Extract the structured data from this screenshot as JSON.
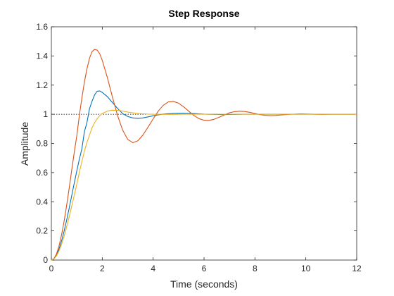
{
  "chart_data": {
    "type": "line",
    "title": "Step Response",
    "xlabel": "Time (seconds)",
    "ylabel": "Amplitude",
    "xlim": [
      0,
      12
    ],
    "ylim": [
      0,
      1.6
    ],
    "xticks": [
      0,
      2,
      4,
      6,
      8,
      10,
      12
    ],
    "yticks": [
      0,
      0.2,
      0.4,
      0.6,
      0.8,
      1,
      1.2,
      1.4,
      1.6
    ],
    "xtick_labels": [
      "0",
      "2",
      "4",
      "6",
      "8",
      "10",
      "12"
    ],
    "ytick_labels": [
      "0",
      "0.2",
      "0.4",
      "0.6",
      "0.8",
      "1",
      "1.2",
      "1.4",
      "1.6"
    ],
    "grid": false,
    "legend": "none",
    "reference_line": {
      "y": 1,
      "style": "dotted",
      "color": "#000000"
    },
    "series": [
      {
        "color": "#0072BD",
        "x": [
          0,
          0.1,
          0.2,
          0.3,
          0.4,
          0.5,
          0.6,
          0.7,
          0.8,
          0.9,
          1.0,
          1.1,
          1.2,
          1.3,
          1.4,
          1.5,
          1.6,
          1.7,
          1.8,
          1.9,
          2.0,
          2.2,
          2.4,
          2.6,
          2.8,
          3.0,
          3.2,
          3.4,
          3.6,
          3.8,
          4.0,
          4.2,
          4.4,
          4.6,
          4.8,
          5.0,
          5.2,
          5.4,
          5.6,
          5.8,
          6.0,
          6.4,
          6.8,
          7.2,
          7.6,
          8.0,
          8.5,
          9.0,
          9.5,
          10.0,
          10.5,
          11.0,
          11.5,
          12.0
        ],
        "y": [
          0,
          0.008,
          0.034,
          0.075,
          0.13,
          0.197,
          0.273,
          0.356,
          0.442,
          0.528,
          0.612,
          0.692,
          0.764,
          0.881,
          0.945,
          1.038,
          1.09,
          1.133,
          1.158,
          1.16,
          1.15,
          1.121,
          1.081,
          1.04,
          1.005,
          0.985,
          0.975,
          0.972,
          0.975,
          0.982,
          0.99,
          0.996,
          1.001,
          1.004,
          1.006,
          1.007,
          1.007,
          1.006,
          1.005,
          1.003,
          1.001,
          0.999,
          0.998,
          0.999,
          1.0,
          1.0,
          1.0,
          1.0,
          1.0,
          1.0,
          1.0,
          1.0,
          1.0,
          1.0
        ]
      },
      {
        "color": "#D95319",
        "x": [
          0,
          0.1,
          0.2,
          0.3,
          0.4,
          0.5,
          0.6,
          0.7,
          0.8,
          0.9,
          1.0,
          1.1,
          1.2,
          1.3,
          1.4,
          1.5,
          1.6,
          1.7,
          1.8,
          1.9,
          2.0,
          2.2,
          2.4,
          2.6,
          2.8,
          3.0,
          3.2,
          3.4,
          3.6,
          3.8,
          4.0,
          4.2,
          4.4,
          4.6,
          4.8,
          5.0,
          5.2,
          5.4,
          5.6,
          5.8,
          6.0,
          6.2,
          6.4,
          6.6,
          6.8,
          7.0,
          7.2,
          7.4,
          7.6,
          7.8,
          8.0,
          8.2,
          8.4,
          8.6,
          8.8,
          9.0,
          9.4,
          9.8,
          10.2,
          10.6,
          11.0,
          11.5,
          12.0
        ],
        "y": [
          0,
          0.009,
          0.041,
          0.096,
          0.172,
          0.265,
          0.374,
          0.493,
          0.617,
          0.739,
          0.853,
          0.992,
          1.112,
          1.223,
          1.313,
          1.385,
          1.43,
          1.445,
          1.44,
          1.415,
          1.37,
          1.252,
          1.118,
          0.992,
          0.892,
          0.828,
          0.805,
          0.818,
          0.858,
          0.912,
          0.968,
          1.022,
          1.062,
          1.085,
          1.088,
          1.076,
          1.051,
          1.021,
          0.992,
          0.97,
          0.959,
          0.958,
          0.966,
          0.98,
          0.996,
          1.01,
          1.018,
          1.021,
          1.019,
          1.013,
          1.005,
          0.998,
          0.993,
          0.991,
          0.992,
          0.995,
          1.0,
          1.003,
          1.001,
          0.999,
          1.0,
          1.0,
          1.0
        ]
      },
      {
        "color": "#EDB120",
        "x": [
          0,
          0.1,
          0.2,
          0.3,
          0.4,
          0.5,
          0.6,
          0.7,
          0.8,
          0.9,
          1.0,
          1.1,
          1.2,
          1.3,
          1.4,
          1.5,
          1.6,
          1.7,
          1.8,
          1.9,
          2.0,
          2.2,
          2.4,
          2.6,
          2.8,
          3.0,
          3.2,
          3.4,
          3.6,
          3.8,
          4.0,
          4.4,
          4.8,
          5.2,
          5.6,
          6.0,
          7.0,
          8.0,
          9.0,
          10.0,
          11.0,
          12.0
        ],
        "y": [
          0,
          0.007,
          0.028,
          0.062,
          0.108,
          0.163,
          0.227,
          0.297,
          0.37,
          0.443,
          0.52,
          0.602,
          0.677,
          0.747,
          0.808,
          0.858,
          0.908,
          0.942,
          0.97,
          0.99,
          1.005,
          1.022,
          1.028,
          1.027,
          1.022,
          1.015,
          1.01,
          1.006,
          1.003,
          1.001,
          1.0,
          0.999,
          0.999,
          1.0,
          1.0,
          1.0,
          1.0,
          1.0,
          1.0,
          1.0,
          1.0,
          1.0
        ]
      }
    ]
  }
}
